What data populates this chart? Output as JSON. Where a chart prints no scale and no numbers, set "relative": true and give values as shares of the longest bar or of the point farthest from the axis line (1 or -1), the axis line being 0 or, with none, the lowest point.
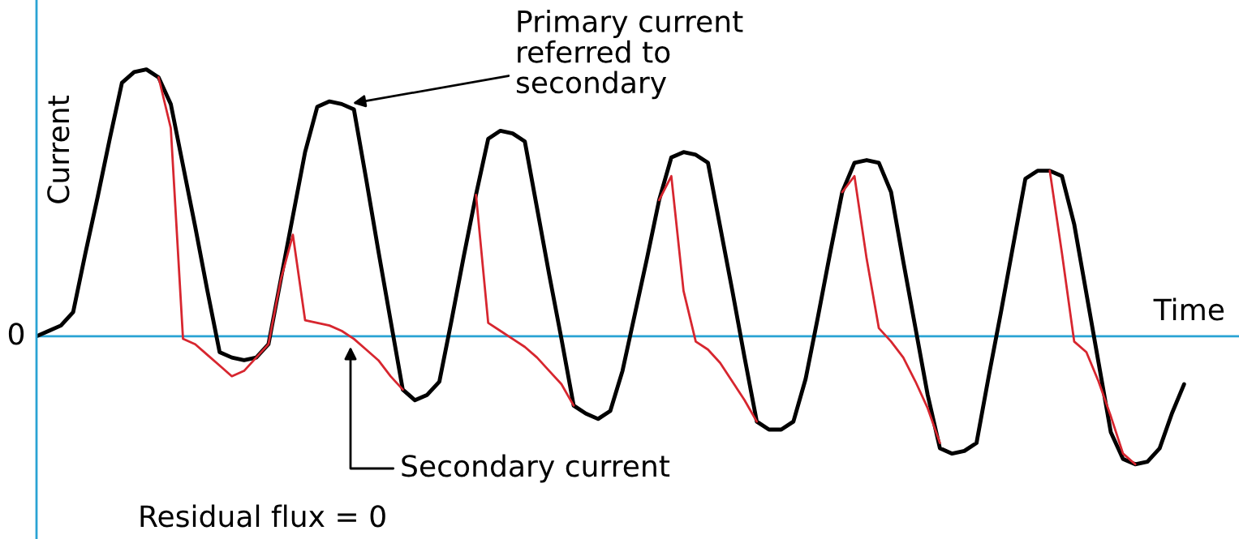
{
  "chart_data": {
    "type": "line",
    "relative": true,
    "ylabel": "Current",
    "xlabel": "Time",
    "categories": [
      null,
      null,
      null,
      null,
      null,
      null,
      null,
      null,
      null,
      null,
      null,
      null,
      null,
      null,
      null,
      null,
      null,
      null,
      null,
      null,
      null,
      null,
      null,
      null,
      null,
      null,
      null,
      null,
      null,
      null,
      null,
      null,
      null,
      null,
      null,
      null,
      null,
      null,
      null,
      null,
      null,
      null,
      null,
      null,
      null,
      null,
      null,
      null,
      null,
      null,
      null,
      null,
      null,
      null,
      null,
      null,
      null,
      null,
      null,
      null,
      null,
      null,
      null,
      null,
      null,
      null,
      null,
      null,
      null,
      null,
      null,
      null,
      null,
      null,
      null,
      null,
      null,
      null,
      null,
      null,
      null,
      null,
      null,
      null,
      null,
      null,
      null,
      null,
      null,
      null,
      null,
      null,
      null,
      null,
      null
    ],
    "series": [
      {
        "color": "#000000",
        "values": [
          0,
          0.02,
          0.04,
          0.09,
          0.31,
          0.52,
          0.74,
          0.95,
          0.99,
          1.0,
          0.97,
          0.87,
          0.64,
          0.41,
          0.17,
          -0.06,
          -0.08,
          -0.09,
          -0.08,
          -0.03,
          0.21,
          0.45,
          0.69,
          0.86,
          0.88,
          0.87,
          0.85,
          0.59,
          0.32,
          0.06,
          -0.2,
          -0.24,
          -0.22,
          -0.17,
          0.06,
          0.3,
          0.53,
          0.74,
          0.77,
          0.76,
          0.73,
          0.48,
          0.23,
          -0.01,
          -0.26,
          -0.29,
          -0.31,
          -0.28,
          -0.13,
          0.08,
          0.29,
          0.51,
          0.67,
          0.69,
          0.68,
          0.65,
          0.41,
          0.17,
          -0.08,
          -0.32,
          -0.35,
          -0.35,
          -0.32,
          -0.16,
          0.07,
          0.31,
          0.54,
          0.65,
          0.66,
          0.65,
          0.54,
          0.28,
          0.03,
          -0.22,
          -0.42,
          -0.44,
          -0.43,
          -0.4,
          -0.15,
          0.09,
          0.34,
          0.59,
          0.62,
          0.62,
          0.6,
          0.42,
          0.16,
          -0.1,
          -0.36,
          -0.46,
          -0.48,
          -0.47,
          -0.42,
          -0.29,
          -0.18
        ]
      },
      {
        "color": "#d7262f",
        "values": [
          null,
          null,
          null,
          null,
          null,
          null,
          null,
          null,
          null,
          null,
          0.97,
          0.78,
          -0.01,
          -0.03,
          -0.07,
          -0.11,
          -0.15,
          -0.13,
          -0.08,
          -0.03,
          0.21,
          0.38,
          0.06,
          0.05,
          0.04,
          0.02,
          -0.01,
          -0.05,
          -0.09,
          -0.15,
          -0.2,
          null,
          null,
          null,
          null,
          null,
          0.53,
          0.05,
          0.02,
          -0.01,
          -0.04,
          -0.08,
          -0.13,
          -0.18,
          -0.26,
          null,
          null,
          null,
          null,
          null,
          null,
          0.51,
          0.6,
          0.17,
          -0.02,
          -0.05,
          -0.1,
          -0.17,
          -0.24,
          -0.32,
          null,
          null,
          null,
          null,
          null,
          null,
          0.54,
          0.6,
          0.29,
          0.03,
          -0.02,
          -0.08,
          -0.17,
          -0.27,
          -0.4,
          null,
          null,
          null,
          null,
          null,
          null,
          null,
          null,
          0.62,
          0.31,
          -0.02,
          -0.06,
          -0.17,
          -0.3,
          -0.44,
          -0.48,
          null,
          null,
          null,
          null
        ]
      }
    ],
    "annotations": [
      "0",
      "Primary current\nreferred to\nsecondary",
      "Secondary current",
      "Residual flux = 0"
    ],
    "ref_lines": [
      {
        "axis": "y",
        "value": 0,
        "color": "#2aa3d4",
        "line_style": "solid"
      }
    ],
    "line_style": "solid",
    "legend": false
  }
}
